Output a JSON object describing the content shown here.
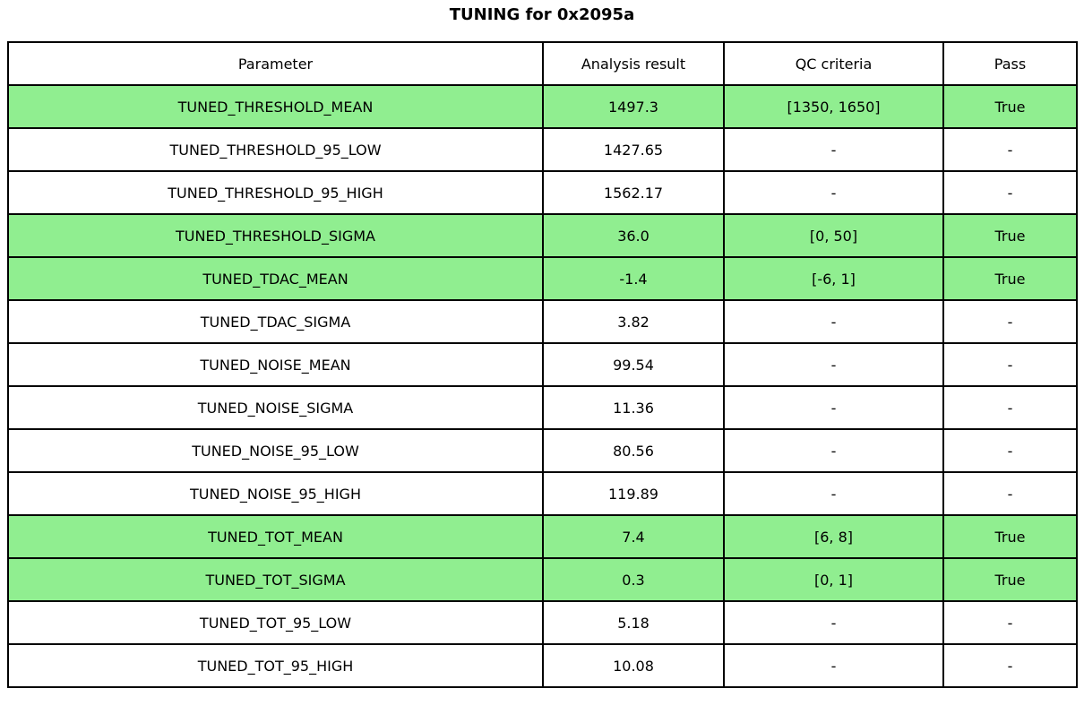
{
  "title": "TUNING for 0x2095a",
  "highlight_color": "#90ee90",
  "table": {
    "columns": [
      "Parameter",
      "Analysis result",
      "QC criteria",
      "Pass"
    ],
    "rows": [
      {
        "parameter": "TUNED_THRESHOLD_MEAN",
        "result": "1497.3",
        "qc": "[1350, 1650]",
        "pass": "True",
        "highlight": true
      },
      {
        "parameter": "TUNED_THRESHOLD_95_LOW",
        "result": "1427.65",
        "qc": "-",
        "pass": "-",
        "highlight": false
      },
      {
        "parameter": "TUNED_THRESHOLD_95_HIGH",
        "result": "1562.17",
        "qc": "-",
        "pass": "-",
        "highlight": false
      },
      {
        "parameter": "TUNED_THRESHOLD_SIGMA",
        "result": "36.0",
        "qc": "[0, 50]",
        "pass": "True",
        "highlight": true
      },
      {
        "parameter": "TUNED_TDAC_MEAN",
        "result": "-1.4",
        "qc": "[-6, 1]",
        "pass": "True",
        "highlight": true
      },
      {
        "parameter": "TUNED_TDAC_SIGMA",
        "result": "3.82",
        "qc": "-",
        "pass": "-",
        "highlight": false
      },
      {
        "parameter": "TUNED_NOISE_MEAN",
        "result": "99.54",
        "qc": "-",
        "pass": "-",
        "highlight": false
      },
      {
        "parameter": "TUNED_NOISE_SIGMA",
        "result": "11.36",
        "qc": "-",
        "pass": "-",
        "highlight": false
      },
      {
        "parameter": "TUNED_NOISE_95_LOW",
        "result": "80.56",
        "qc": "-",
        "pass": "-",
        "highlight": false
      },
      {
        "parameter": "TUNED_NOISE_95_HIGH",
        "result": "119.89",
        "qc": "-",
        "pass": "-",
        "highlight": false
      },
      {
        "parameter": "TUNED_TOT_MEAN",
        "result": "7.4",
        "qc": "[6, 8]",
        "pass": "True",
        "highlight": true
      },
      {
        "parameter": "TUNED_TOT_SIGMA",
        "result": "0.3",
        "qc": "[0, 1]",
        "pass": "True",
        "highlight": true
      },
      {
        "parameter": "TUNED_TOT_95_LOW",
        "result": "5.18",
        "qc": "-",
        "pass": "-",
        "highlight": false
      },
      {
        "parameter": "TUNED_TOT_95_HIGH",
        "result": "10.08",
        "qc": "-",
        "pass": "-",
        "highlight": false
      }
    ]
  },
  "chart_data": {
    "type": "table",
    "title": "TUNING for 0x2095a",
    "columns": [
      "Parameter",
      "Analysis result",
      "QC criteria",
      "Pass"
    ],
    "rows": [
      [
        "TUNED_THRESHOLD_MEAN",
        1497.3,
        "[1350, 1650]",
        "True"
      ],
      [
        "TUNED_THRESHOLD_95_LOW",
        1427.65,
        "-",
        "-"
      ],
      [
        "TUNED_THRESHOLD_95_HIGH",
        1562.17,
        "-",
        "-"
      ],
      [
        "TUNED_THRESHOLD_SIGMA",
        36.0,
        "[0, 50]",
        "True"
      ],
      [
        "TUNED_TDAC_MEAN",
        -1.4,
        "[-6, 1]",
        "True"
      ],
      [
        "TUNED_TDAC_SIGMA",
        3.82,
        "-",
        "-"
      ],
      [
        "TUNED_NOISE_MEAN",
        99.54,
        "-",
        "-"
      ],
      [
        "TUNED_NOISE_SIGMA",
        11.36,
        "-",
        "-"
      ],
      [
        "TUNED_NOISE_95_LOW",
        80.56,
        "-",
        "-"
      ],
      [
        "TUNED_NOISE_95_HIGH",
        119.89,
        "-",
        "-"
      ],
      [
        "TUNED_TOT_MEAN",
        7.4,
        "[6, 8]",
        "True"
      ],
      [
        "TUNED_TOT_SIGMA",
        0.3,
        "[0, 1]",
        "True"
      ],
      [
        "TUNED_TOT_95_LOW",
        5.18,
        "-",
        "-"
      ],
      [
        "TUNED_TOT_95_HIGH",
        10.08,
        "-",
        "-"
      ]
    ],
    "highlighted_rows": [
      0,
      3,
      4,
      10,
      11
    ],
    "highlight_color": "#90ee90",
    "layout_hints": {
      "grid": "full black borders",
      "header_background": "#ffffff",
      "text_align": "center"
    }
  }
}
